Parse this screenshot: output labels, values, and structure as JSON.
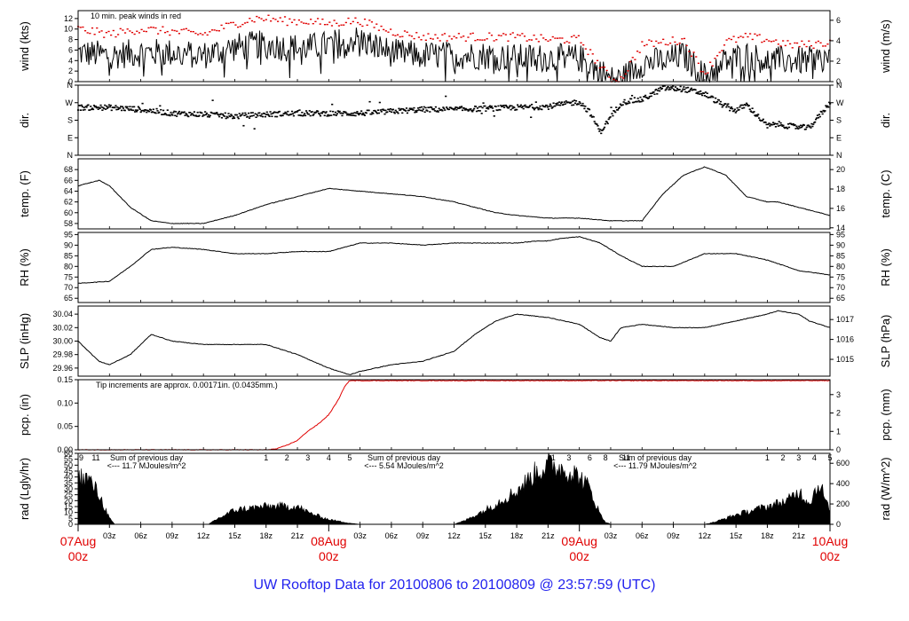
{
  "footer": {
    "title": "UW Rooftop Data for 20100806  to  20100809 @ 23:57:59  (UTC)"
  },
  "colors": {
    "axes": "#000000",
    "peak": "#e00000",
    "pcp": "#e00000",
    "day_label": "#e00000",
    "solar_annotation": "#9922cc",
    "footer": "#2222ee"
  },
  "chart_data": [
    {
      "type": "line",
      "x_range_hours": [
        0,
        72
      ],
      "ylabel_left": "wind (kts)",
      "ylabel_right": "wind (m/s)",
      "ylim": [
        0,
        13.5
      ],
      "yticks_left": [
        "0",
        "2",
        "4",
        "6",
        "8",
        "10",
        "12"
      ],
      "yticks_right": [
        "0",
        "2",
        "4",
        "6"
      ],
      "annotation": "10 min. peak winds in red",
      "series": [
        {
          "name": "wind speed",
          "style": "noisy",
          "x": [
            0,
            3,
            6,
            9,
            12,
            15,
            17,
            18,
            20,
            22,
            24,
            26,
            27,
            30,
            33,
            36,
            39,
            42,
            45,
            48,
            50,
            51,
            52,
            54,
            56,
            58,
            60,
            62,
            64,
            66,
            68,
            70,
            72
          ],
          "y": [
            5.5,
            5,
            5.5,
            5.5,
            5,
            6.5,
            7,
            7,
            6.5,
            6.5,
            7,
            8,
            8,
            5.5,
            5,
            5,
            5,
            4.5,
            4.5,
            4.5,
            2,
            0.4,
            0.4,
            3.5,
            4,
            5,
            1,
            4,
            5,
            4,
            4,
            4,
            4.5
          ]
        },
        {
          "name": "10 min. peak winds",
          "style": "peak",
          "x": [
            0,
            3,
            6,
            9,
            12,
            15,
            17,
            18,
            20,
            22,
            24,
            26,
            27,
            30,
            33,
            36,
            39,
            42,
            45,
            48,
            50,
            51,
            52,
            54,
            56,
            58,
            60,
            62,
            64,
            66,
            68,
            70,
            72
          ],
          "y": [
            10,
            9,
            10,
            9.5,
            9,
            11,
            12,
            12,
            11.5,
            11.5,
            11,
            11.5,
            11.5,
            9.5,
            8.5,
            8.5,
            8.5,
            8.5,
            8,
            8,
            3,
            0.5,
            0.5,
            7,
            7.5,
            8,
            1.5,
            7.5,
            8.5,
            8,
            7,
            7,
            7.5
          ]
        }
      ]
    },
    {
      "type": "scatter",
      "x_range_hours": [
        0,
        72
      ],
      "ylabel_left": "dir.",
      "ylabel_right": "dir.",
      "ylim": [
        0,
        360
      ],
      "yticks_left": [
        "N",
        "E",
        "S",
        "W",
        "N"
      ],
      "yticks_right": [
        "N",
        "E",
        "S",
        "W",
        "N"
      ],
      "series": [
        {
          "name": "wind direction",
          "style": "dots",
          "x": [
            0,
            3,
            6,
            9,
            12,
            15,
            18,
            21,
            24,
            27,
            30,
            33,
            36,
            39,
            42,
            45,
            48,
            49,
            50,
            52,
            53,
            54,
            56,
            58,
            60,
            62,
            63,
            64,
            66,
            67,
            68,
            70,
            72
          ],
          "y": [
            245,
            245,
            235,
            215,
            210,
            200,
            210,
            215,
            215,
            215,
            225,
            235,
            235,
            240,
            245,
            250,
            275,
            220,
            120,
            270,
            280,
            285,
            345,
            340,
            315,
            250,
            230,
            260,
            150,
            160,
            150,
            140,
            270
          ]
        }
      ]
    },
    {
      "type": "line",
      "x_range_hours": [
        0,
        72
      ],
      "ylabel_left": "temp. (F)",
      "ylabel_right": "temp. (C)",
      "ylim": [
        57,
        70
      ],
      "yticks_left": [
        "58",
        "60",
        "62",
        "64",
        "66",
        "68"
      ],
      "yticks_right": [
        "14",
        "16",
        "18",
        "20"
      ],
      "series": [
        {
          "name": "temperature",
          "style": "line",
          "x": [
            0,
            2,
            3,
            5,
            7,
            9,
            12,
            15,
            18,
            21,
            24,
            27,
            30,
            33,
            36,
            38,
            40,
            42,
            45,
            48,
            51,
            54,
            56,
            58,
            60,
            62,
            64,
            66,
            67,
            69,
            72
          ],
          "y": [
            65,
            66,
            65,
            61,
            58.5,
            58,
            58,
            59.5,
            61.5,
            63,
            64.5,
            64,
            63.5,
            63,
            62,
            61,
            60,
            59.5,
            59,
            59,
            58.5,
            58.5,
            63.5,
            67,
            68.5,
            67,
            63,
            62,
            62,
            61,
            59.5
          ]
        }
      ]
    },
    {
      "type": "line",
      "x_range_hours": [
        0,
        72
      ],
      "ylabel_left": "RH (%)",
      "ylabel_right": "RH (%)",
      "ylim": [
        63,
        96
      ],
      "yticks_left": [
        "65",
        "70",
        "75",
        "80",
        "85",
        "90",
        "95"
      ],
      "yticks_right": [
        "65",
        "70",
        "75",
        "80",
        "85",
        "90",
        "95"
      ],
      "series": [
        {
          "name": "relative humidity",
          "style": "line",
          "x": [
            0,
            3,
            5,
            7,
            9,
            12,
            15,
            18,
            21,
            24,
            27,
            30,
            33,
            36,
            39,
            42,
            44,
            45,
            46,
            48,
            50,
            52,
            54,
            57,
            60,
            63,
            66,
            69,
            72
          ],
          "y": [
            72,
            73,
            80,
            88,
            89,
            88,
            86,
            86,
            87,
            87,
            91,
            91,
            90,
            91,
            91,
            91,
            92,
            92,
            93,
            94,
            91,
            85,
            80,
            80,
            86,
            86,
            83,
            78,
            76
          ]
        }
      ]
    },
    {
      "type": "line",
      "x_range_hours": [
        0,
        72
      ],
      "ylabel_left": "SLP (inHg)",
      "ylabel_right": "SLP (hPa)",
      "ylim": [
        29.948,
        30.052
      ],
      "yticks_left": [
        "29.96",
        "29.98",
        "30.00",
        "30.02",
        "30.04"
      ],
      "yticks_right": [
        "1015",
        "1016",
        "1017"
      ],
      "series": [
        {
          "name": "sea level pressure",
          "style": "line",
          "x": [
            0,
            2,
            3,
            5,
            7,
            9,
            12,
            15,
            18,
            21,
            24,
            26,
            27,
            30,
            33,
            36,
            38,
            40,
            42,
            45,
            48,
            50,
            51,
            52,
            54,
            57,
            60,
            63,
            66,
            67,
            69,
            70,
            72
          ],
          "y": [
            30.0,
            29.97,
            29.965,
            29.98,
            30.01,
            30.0,
            29.995,
            29.995,
            29.995,
            29.98,
            29.96,
            29.95,
            29.955,
            29.965,
            29.97,
            29.985,
            30.01,
            30.03,
            30.04,
            30.035,
            30.025,
            30.005,
            30.0,
            30.02,
            30.025,
            30.02,
            30.02,
            30.03,
            30.04,
            30.045,
            30.04,
            30.03,
            30.02
          ]
        }
      ]
    },
    {
      "type": "line",
      "x_range_hours": [
        0,
        72
      ],
      "ylabel_left": "pcp. (in)",
      "ylabel_right": "pcp. (mm)",
      "ylim": [
        0,
        0.15
      ],
      "yticks_left": [
        "0.00",
        "0.05",
        "0.10",
        "0.15"
      ],
      "yticks_right": [
        "0",
        "1",
        "2",
        "3"
      ],
      "annotation": "Tip increments are approx. 0.00171in. (0.0435mm.)",
      "series": [
        {
          "name": "precipitation",
          "style": "line",
          "x": [
            0,
            18,
            19,
            20,
            21,
            22,
            23,
            24,
            25,
            25.5,
            26,
            28,
            40,
            48,
            60,
            72
          ],
          "y": [
            0,
            0,
            0.002,
            0.01,
            0.02,
            0.04,
            0.055,
            0.075,
            0.11,
            0.135,
            0.148,
            0.148,
            0.148,
            0.148,
            0.148,
            0.148
          ]
        }
      ]
    },
    {
      "type": "area",
      "x_range_hours": [
        0,
        72
      ],
      "ylabel_left": "rad (Lgly/hr)",
      "ylabel_right": "rad (W/m^2)",
      "ylim": [
        0,
        60
      ],
      "yticks_left": [
        "0",
        "5",
        "10",
        "15",
        "20",
        "25",
        "30",
        "35",
        "40",
        "45",
        "50",
        "55",
        "60"
      ],
      "yticks_right": [
        "0",
        "200",
        "400",
        "600"
      ],
      "x_tick_labels": [
        "03z",
        "06z",
        "09z",
        "12z",
        "15z",
        "18z",
        "21z",
        "03z",
        "06z",
        "09z",
        "12z",
        "15z",
        "18z",
        "21z",
        "03z",
        "06z",
        "09z",
        "12z",
        "15z",
        "18z",
        "21z"
      ],
      "day_labels": [
        {
          "date": "07Aug",
          "zulu": "00z"
        },
        {
          "date": "08Aug",
          "zulu": "00z"
        },
        {
          "date": "09Aug",
          "zulu": "00z"
        },
        {
          "date": "10Aug",
          "zulu": "00z"
        }
      ],
      "hour_marks": [
        "9",
        "11",
        "1",
        "2",
        "3",
        "4",
        "5",
        "1",
        "3",
        "6",
        "8",
        "11",
        "1",
        "2",
        "3",
        "4",
        "5"
      ],
      "annotations": [
        {
          "line1": "Sum of previous day",
          "line2": "<--- 11.7 MJoules/m^2"
        },
        {
          "line1": "Sum of previous day",
          "line2": "<--- 5.54 MJoules/m^2"
        },
        {
          "line1": "Sum of previous day",
          "line2": "<--- 11.79 MJoules/m^2"
        }
      ],
      "series": [
        {
          "name": "solar radiation",
          "style": "area",
          "x": [
            0,
            1,
            2,
            3,
            3.5,
            4,
            12.5,
            13,
            15,
            18,
            21,
            22,
            24,
            26,
            27,
            36,
            37,
            39,
            42,
            44,
            45,
            46,
            47,
            48,
            49,
            50,
            50.5,
            51,
            60,
            61,
            63,
            66,
            68,
            69,
            70,
            71,
            72
          ],
          "y": [
            40,
            38,
            25,
            5,
            0,
            0,
            0,
            3,
            12,
            15,
            15,
            10,
            4,
            1,
            0,
            0,
            3,
            12,
            28,
            45,
            50,
            48,
            45,
            40,
            30,
            8,
            2,
            0,
            0,
            2,
            8,
            15,
            20,
            28,
            18,
            35,
            10
          ]
        }
      ]
    }
  ]
}
